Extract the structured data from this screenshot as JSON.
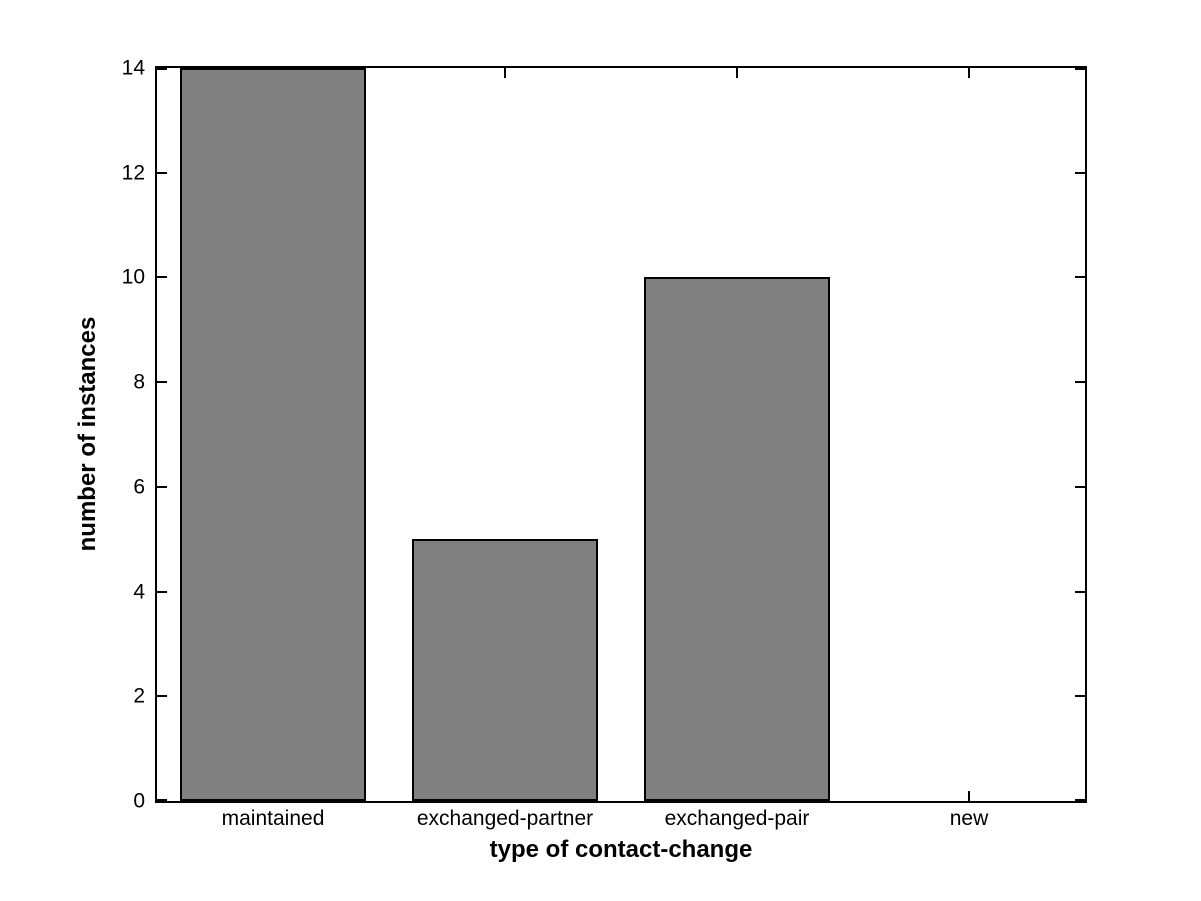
{
  "chart_data": {
    "type": "bar",
    "title": "",
    "categories": [
      "maintained",
      "exchanged-partner",
      "exchanged-pair",
      "new"
    ],
    "values": [
      14,
      5,
      10,
      0
    ],
    "xlabel": "type of contact-change",
    "ylabel": "number of instances",
    "ylim": [
      0,
      14
    ],
    "yticks": [
      0,
      2,
      4,
      6,
      8,
      10,
      12,
      14
    ],
    "ytick_labels": [
      "0",
      "2",
      "4",
      "6",
      "8",
      "10",
      "12",
      "14"
    ],
    "bar_color": "#808080",
    "bar_edge_color": "#000000",
    "axis_color": "#000000",
    "background_color": "#ffffff",
    "bar_width_fraction": 0.8,
    "grid": false,
    "legend": "none",
    "tick_direction": "in",
    "box": true
  }
}
